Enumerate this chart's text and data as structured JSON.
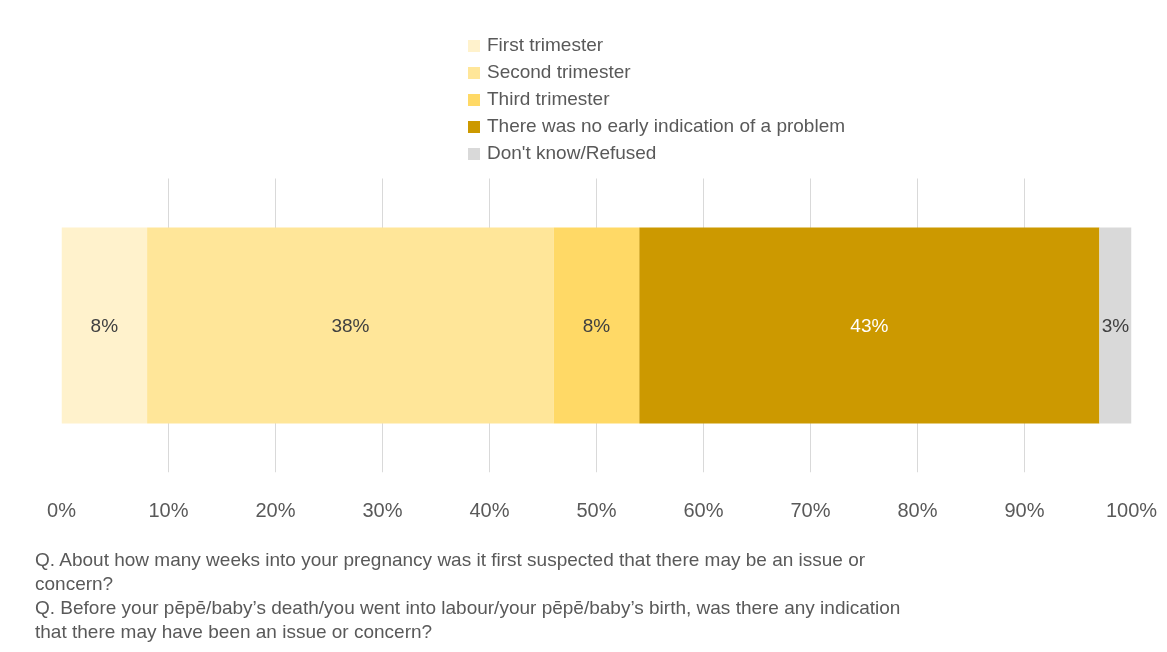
{
  "chart_data": {
    "type": "bar",
    "orientation": "horizontal",
    "stacked": true,
    "categories": [
      null
    ],
    "series": [
      {
        "name": "First trimester",
        "color": "#fff2cc",
        "values": [
          8
        ],
        "value_labels": [
          "8%"
        ]
      },
      {
        "name": "Second trimester",
        "color": "#ffe699",
        "values": [
          38
        ],
        "value_labels": [
          "38%"
        ]
      },
      {
        "name": "Third trimester",
        "color": "#ffd966",
        "values": [
          8
        ],
        "value_labels": [
          "8%"
        ]
      },
      {
        "name": "There was no early indication of a problem",
        "color": "#cc9900",
        "values": [
          43
        ],
        "value_labels": [
          "43%"
        ]
      },
      {
        "name": "Don't know/Refused",
        "color": "#d9d9d9",
        "values": [
          3
        ],
        "value_labels": [
          "3%"
        ]
      }
    ],
    "xlim": [
      0,
      100
    ],
    "xticks": [
      {
        "value": 0,
        "label": "0%"
      },
      {
        "value": 10,
        "label": "10%"
      },
      {
        "value": 20,
        "label": "20%"
      },
      {
        "value": 30,
        "label": "30%"
      },
      {
        "value": 40,
        "label": "40%"
      },
      {
        "value": 50,
        "label": "50%"
      },
      {
        "value": 60,
        "label": "60%"
      },
      {
        "value": 70,
        "label": "70%"
      },
      {
        "value": 80,
        "label": "80%"
      },
      {
        "value": 90,
        "label": "90%"
      },
      {
        "value": 100,
        "label": "100%"
      }
    ],
    "grid": "x",
    "legend": "top",
    "annotations": [
      "Q. About how many weeks into your pregnancy was it first suspected that there may be an issue or concern?",
      "Q. Before your pēpē/baby’s death/you went into labour/your pēpē/baby’s birth, was there any indication that there may have been an issue or concern?"
    ]
  }
}
